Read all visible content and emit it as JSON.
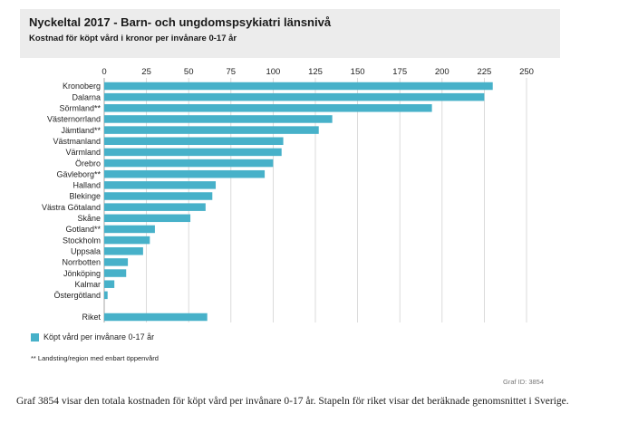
{
  "chart_data": {
    "type": "bar",
    "orientation": "horizontal",
    "title": "Nyckeltal 2017 - Barn- och ungdomspsykiatri länsnivå",
    "subtitle": "Kostnad för köpt vård i kronor per invånare 0-17 år",
    "xlim": [
      0,
      250
    ],
    "xticks": [
      "0",
      "25",
      "50",
      "75",
      "100",
      "125",
      "150",
      "175",
      "200",
      "225",
      "250"
    ],
    "grid": true,
    "legend_position": "bottom-left",
    "color": "#47b1c9",
    "categories": [
      "Kronoberg",
      "Dalarna",
      "Sörmland**",
      "Västernorrland",
      "Jämtland**",
      "Västmanland",
      "Värmland",
      "Örebro",
      "Gävleborg**",
      "Halland",
      "Blekinge",
      "Västra Götaland",
      "Skåne",
      "Gotland**",
      "Stockholm",
      "Uppsala",
      "Norrbotten",
      "Jönköping",
      "Kalmar",
      "Östergötland",
      "Riket"
    ],
    "series": [
      {
        "name": "Köpt vård per invånare 0-17 år",
        "values": [
          230,
          225,
          194,
          135,
          127,
          106,
          105,
          100,
          95,
          66,
          64,
          60,
          51,
          30,
          27,
          23,
          14,
          13,
          6,
          2,
          61
        ]
      }
    ]
  },
  "footnote": "** Landsting/region med enbart öppenvård",
  "graf_id": "Graf ID: 3854",
  "caption": "Graf 3854 visar den totala kostnaden för köpt vård per invånare 0-17 år. Stapeln för riket visar det beräknade genomsnittet i Sverige."
}
